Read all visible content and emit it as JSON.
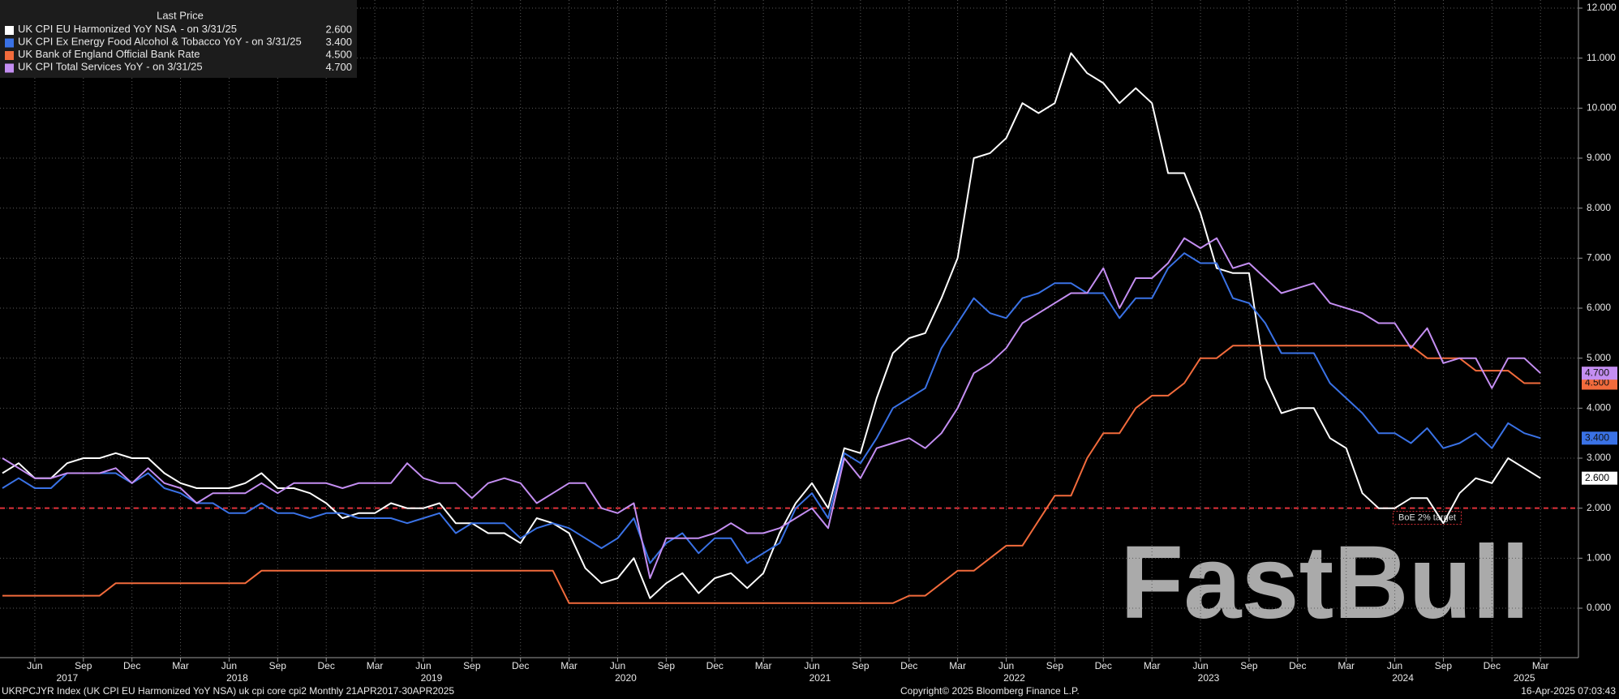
{
  "chart_data": {
    "type": "line",
    "legend_header": "Last Price",
    "x": [
      "2017-04",
      "2017-05",
      "2017-06",
      "2017-07",
      "2017-08",
      "2017-09",
      "2017-10",
      "2017-11",
      "2017-12",
      "2018-01",
      "2018-02",
      "2018-03",
      "2018-04",
      "2018-05",
      "2018-06",
      "2018-07",
      "2018-08",
      "2018-09",
      "2018-10",
      "2018-11",
      "2018-12",
      "2019-01",
      "2019-02",
      "2019-03",
      "2019-04",
      "2019-05",
      "2019-06",
      "2019-07",
      "2019-08",
      "2019-09",
      "2019-10",
      "2019-11",
      "2019-12",
      "2020-01",
      "2020-02",
      "2020-03",
      "2020-04",
      "2020-05",
      "2020-06",
      "2020-07",
      "2020-08",
      "2020-09",
      "2020-10",
      "2020-11",
      "2020-12",
      "2021-01",
      "2021-02",
      "2021-03",
      "2021-04",
      "2021-05",
      "2021-06",
      "2021-07",
      "2021-08",
      "2021-09",
      "2021-10",
      "2021-11",
      "2021-12",
      "2022-01",
      "2022-02",
      "2022-03",
      "2022-04",
      "2022-05",
      "2022-06",
      "2022-07",
      "2022-08",
      "2022-09",
      "2022-10",
      "2022-11",
      "2022-12",
      "2023-01",
      "2023-02",
      "2023-03",
      "2023-04",
      "2023-05",
      "2023-06",
      "2023-07",
      "2023-08",
      "2023-09",
      "2023-10",
      "2023-11",
      "2023-12",
      "2024-01",
      "2024-02",
      "2024-03",
      "2024-04",
      "2024-05",
      "2024-06",
      "2024-07",
      "2024-08",
      "2024-09",
      "2024-10",
      "2024-11",
      "2024-12",
      "2025-01",
      "2025-02",
      "2025-03"
    ],
    "series": [
      {
        "name": "UK CPI EU Harmonized YoY NSA",
        "date_note": "-  on 3/31/25",
        "last_label": "2.600",
        "color": "#ffffff",
        "values": [
          2.7,
          2.9,
          2.6,
          2.6,
          2.9,
          3.0,
          3.0,
          3.1,
          3.0,
          3.0,
          2.7,
          2.5,
          2.4,
          2.4,
          2.4,
          2.5,
          2.7,
          2.4,
          2.4,
          2.3,
          2.1,
          1.8,
          1.9,
          1.9,
          2.1,
          2.0,
          2.0,
          2.1,
          1.7,
          1.7,
          1.5,
          1.5,
          1.3,
          1.8,
          1.7,
          1.5,
          0.8,
          0.5,
          0.6,
          1.0,
          0.2,
          0.5,
          0.7,
          0.3,
          0.6,
          0.7,
          0.4,
          0.7,
          1.5,
          2.1,
          2.5,
          2.0,
          3.2,
          3.1,
          4.2,
          5.1,
          5.4,
          5.5,
          6.2,
          7.0,
          9.0,
          9.1,
          9.4,
          10.1,
          9.9,
          10.1,
          11.1,
          10.7,
          10.5,
          10.1,
          10.4,
          10.1,
          8.7,
          8.7,
          7.9,
          6.8,
          6.7,
          6.7,
          4.6,
          3.9,
          4.0,
          4.0,
          3.4,
          3.2,
          2.3,
          2.0,
          2.0,
          2.2,
          2.2,
          1.7,
          2.3,
          2.6,
          2.5,
          3.0,
          2.8,
          2.6
        ]
      },
      {
        "name": "UK CPI Ex Energy Food Alcohol & Tobacco YoY",
        "date_note": "-  on 3/31/25",
        "last_label": "3.400",
        "color": "#3a72e6",
        "values": [
          2.4,
          2.6,
          2.4,
          2.4,
          2.7,
          2.7,
          2.7,
          2.7,
          2.5,
          2.7,
          2.4,
          2.3,
          2.1,
          2.1,
          1.9,
          1.9,
          2.1,
          1.9,
          1.9,
          1.8,
          1.9,
          1.9,
          1.8,
          1.8,
          1.8,
          1.7,
          1.8,
          1.9,
          1.5,
          1.7,
          1.7,
          1.7,
          1.4,
          1.6,
          1.7,
          1.6,
          1.4,
          1.2,
          1.4,
          1.8,
          0.9,
          1.3,
          1.5,
          1.1,
          1.4,
          1.4,
          0.9,
          1.1,
          1.3,
          2.0,
          2.3,
          1.8,
          3.1,
          2.9,
          3.4,
          4.0,
          4.2,
          4.4,
          5.2,
          5.7,
          6.2,
          5.9,
          5.8,
          6.2,
          6.3,
          6.5,
          6.5,
          6.3,
          6.3,
          5.8,
          6.2,
          6.2,
          6.8,
          7.1,
          6.9,
          6.9,
          6.2,
          6.1,
          5.7,
          5.1,
          5.1,
          5.1,
          4.5,
          4.2,
          3.9,
          3.5,
          3.5,
          3.3,
          3.6,
          3.2,
          3.3,
          3.5,
          3.2,
          3.7,
          3.5,
          3.4
        ]
      },
      {
        "name": "UK Bank of England Official Bank Rate",
        "last_label": "4.500",
        "color": "#f26b3c",
        "values": [
          0.25,
          0.25,
          0.25,
          0.25,
          0.25,
          0.25,
          0.25,
          0.5,
          0.5,
          0.5,
          0.5,
          0.5,
          0.5,
          0.5,
          0.5,
          0.5,
          0.75,
          0.75,
          0.75,
          0.75,
          0.75,
          0.75,
          0.75,
          0.75,
          0.75,
          0.75,
          0.75,
          0.75,
          0.75,
          0.75,
          0.75,
          0.75,
          0.75,
          0.75,
          0.75,
          0.1,
          0.1,
          0.1,
          0.1,
          0.1,
          0.1,
          0.1,
          0.1,
          0.1,
          0.1,
          0.1,
          0.1,
          0.1,
          0.1,
          0.1,
          0.1,
          0.1,
          0.1,
          0.1,
          0.1,
          0.1,
          0.25,
          0.25,
          0.5,
          0.75,
          0.75,
          1.0,
          1.25,
          1.25,
          1.75,
          2.25,
          2.25,
          3.0,
          3.5,
          3.5,
          4.0,
          4.25,
          4.25,
          4.5,
          5.0,
          5.0,
          5.25,
          5.25,
          5.25,
          5.25,
          5.25,
          5.25,
          5.25,
          5.25,
          5.25,
          5.25,
          5.25,
          5.25,
          5.0,
          5.0,
          5.0,
          4.75,
          4.75,
          4.75,
          4.5,
          4.5
        ]
      },
      {
        "name": "UK CPI Total Services YoY",
        "date_note": "-  on 3/31/25",
        "last_label": "4.700",
        "color": "#c48ef2",
        "values": [
          3.0,
          2.8,
          2.6,
          2.6,
          2.7,
          2.7,
          2.7,
          2.8,
          2.5,
          2.8,
          2.5,
          2.4,
          2.1,
          2.3,
          2.3,
          2.3,
          2.5,
          2.3,
          2.5,
          2.5,
          2.5,
          2.4,
          2.5,
          2.5,
          2.5,
          2.9,
          2.6,
          2.5,
          2.5,
          2.2,
          2.5,
          2.6,
          2.5,
          2.1,
          2.3,
          2.5,
          2.5,
          2.0,
          1.9,
          2.1,
          0.6,
          1.4,
          1.4,
          1.4,
          1.5,
          1.7,
          1.5,
          1.5,
          1.6,
          1.8,
          2.0,
          1.6,
          3.0,
          2.6,
          3.2,
          3.3,
          3.4,
          3.2,
          3.5,
          4.0,
          4.7,
          4.9,
          5.2,
          5.7,
          5.9,
          6.1,
          6.3,
          6.3,
          6.8,
          6.0,
          6.6,
          6.6,
          6.9,
          7.4,
          7.2,
          7.4,
          6.8,
          6.9,
          6.6,
          6.3,
          6.4,
          6.5,
          6.1,
          6.0,
          5.9,
          5.7,
          5.7,
          5.2,
          5.6,
          4.9,
          5.0,
          5.0,
          4.4,
          5.0,
          5.0,
          4.7
        ]
      }
    ],
    "ylim": [
      -0.9,
      12.2
    ],
    "yticks": [
      {
        "value": 0,
        "label": "0.000"
      },
      {
        "value": 1,
        "label": "1.000"
      },
      {
        "value": 2,
        "label": "2.000"
      },
      {
        "value": 3,
        "label": "3.000"
      },
      {
        "value": 4,
        "label": "4.000"
      },
      {
        "value": 5,
        "label": "5.000"
      },
      {
        "value": 6,
        "label": "6.000"
      },
      {
        "value": 7,
        "label": "7.000"
      },
      {
        "value": 8,
        "label": "8.000"
      },
      {
        "value": 9,
        "label": "9.000"
      },
      {
        "value": 10,
        "label": "10.000"
      },
      {
        "value": 11,
        "label": "11.000"
      },
      {
        "value": 12,
        "label": "12.000"
      }
    ],
    "xticks": [
      {
        "value": "2017-06",
        "label": "Jun"
      },
      {
        "value": "2017-09",
        "label": "Sep"
      },
      {
        "value": "2017-12",
        "label": "Dec"
      },
      {
        "value": "2018-03",
        "label": "Mar"
      },
      {
        "value": "2018-06",
        "label": "Jun"
      },
      {
        "value": "2018-09",
        "label": "Sep"
      },
      {
        "value": "2018-12",
        "label": "Dec"
      },
      {
        "value": "2019-03",
        "label": "Mar"
      },
      {
        "value": "2019-06",
        "label": "Jun"
      },
      {
        "value": "2019-09",
        "label": "Sep"
      },
      {
        "value": "2019-12",
        "label": "Dec"
      },
      {
        "value": "2020-03",
        "label": "Mar"
      },
      {
        "value": "2020-06",
        "label": "Jun"
      },
      {
        "value": "2020-09",
        "label": "Sep"
      },
      {
        "value": "2020-12",
        "label": "Dec"
      },
      {
        "value": "2021-03",
        "label": "Mar"
      },
      {
        "value": "2021-06",
        "label": "Jun"
      },
      {
        "value": "2021-09",
        "label": "Sep"
      },
      {
        "value": "2021-12",
        "label": "Dec"
      },
      {
        "value": "2022-03",
        "label": "Mar"
      },
      {
        "value": "2022-06",
        "label": "Jun"
      },
      {
        "value": "2022-09",
        "label": "Sep"
      },
      {
        "value": "2022-12",
        "label": "Dec"
      },
      {
        "value": "2023-03",
        "label": "Mar"
      },
      {
        "value": "2023-06",
        "label": "Jun"
      },
      {
        "value": "2023-09",
        "label": "Sep"
      },
      {
        "value": "2023-12",
        "label": "Dec"
      },
      {
        "value": "2024-03",
        "label": "Mar"
      },
      {
        "value": "2024-06",
        "label": "Jun"
      },
      {
        "value": "2024-09",
        "label": "Sep"
      },
      {
        "value": "2024-12",
        "label": "Dec"
      },
      {
        "value": "2025-03",
        "label": "Mar"
      }
    ],
    "years": [
      2017,
      2018,
      2019,
      2020,
      2021,
      2022,
      2023,
      2024,
      2025
    ],
    "grid": true,
    "reference_line": {
      "value": 2,
      "label": "BoE 2% target",
      "color": "#e0323a"
    },
    "watermark": "FastBull",
    "footer_left": "UKRPCJYR Index (UK CPI EU Harmonized YoY NSA) uk cpi core cpi2  Monthly 21APR2017-30APR2025",
    "footer_center": "Copyright© 2025 Bloomberg Finance L.P.",
    "footer_right": "16-Apr-2025 07:03:43"
  }
}
